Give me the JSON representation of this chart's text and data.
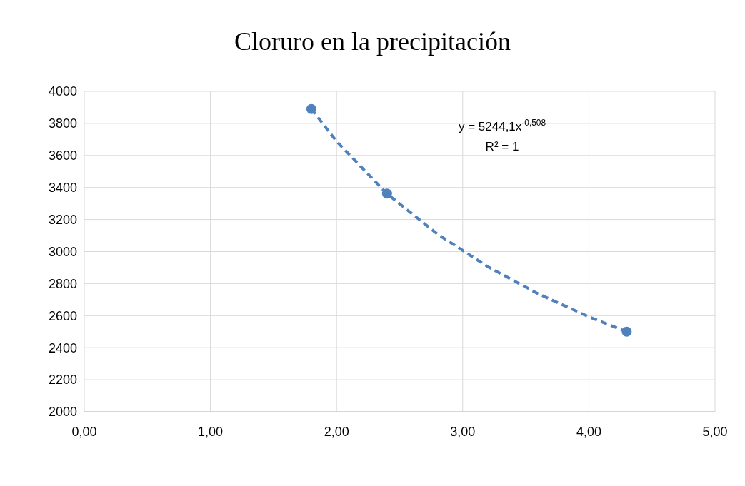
{
  "chart_data": {
    "type": "scatter",
    "title": "Cloruro en la precipitación",
    "series": [
      {
        "type": "scatter",
        "color": "#4f81bd",
        "x": [
          1.8,
          2.4,
          4.3
        ],
        "values": [
          3890,
          3362,
          2500
        ],
        "marker": "circle"
      },
      {
        "type": "line",
        "color": "#4f81bd",
        "x": [
          1.8,
          2.0,
          2.4,
          2.8,
          3.2,
          3.6,
          4.0,
          4.3
        ],
        "values": [
          3890,
          3688,
          3361,
          3109,
          2905,
          2736,
          2593,
          2500
        ],
        "marker": "none",
        "line_style": "dashed"
      }
    ],
    "xlim": [
      0,
      5
    ],
    "xticks": [
      {
        "value": 0,
        "label": "0,00"
      },
      {
        "value": 1,
        "label": "1,00"
      },
      {
        "value": 2,
        "label": "2,00"
      },
      {
        "value": 3,
        "label": "3,00"
      },
      {
        "value": 4,
        "label": "4,00"
      },
      {
        "value": 5,
        "label": "5,00"
      }
    ],
    "ylim": [
      2000,
      4000
    ],
    "yticks": [
      2000,
      2200,
      2400,
      2600,
      2800,
      3000,
      3200,
      3400,
      3600,
      3800,
      4000
    ],
    "grid": true,
    "annotations": [
      "y = 5244,1x$^{-0,508}$",
      "R² = 1"
    ]
  }
}
